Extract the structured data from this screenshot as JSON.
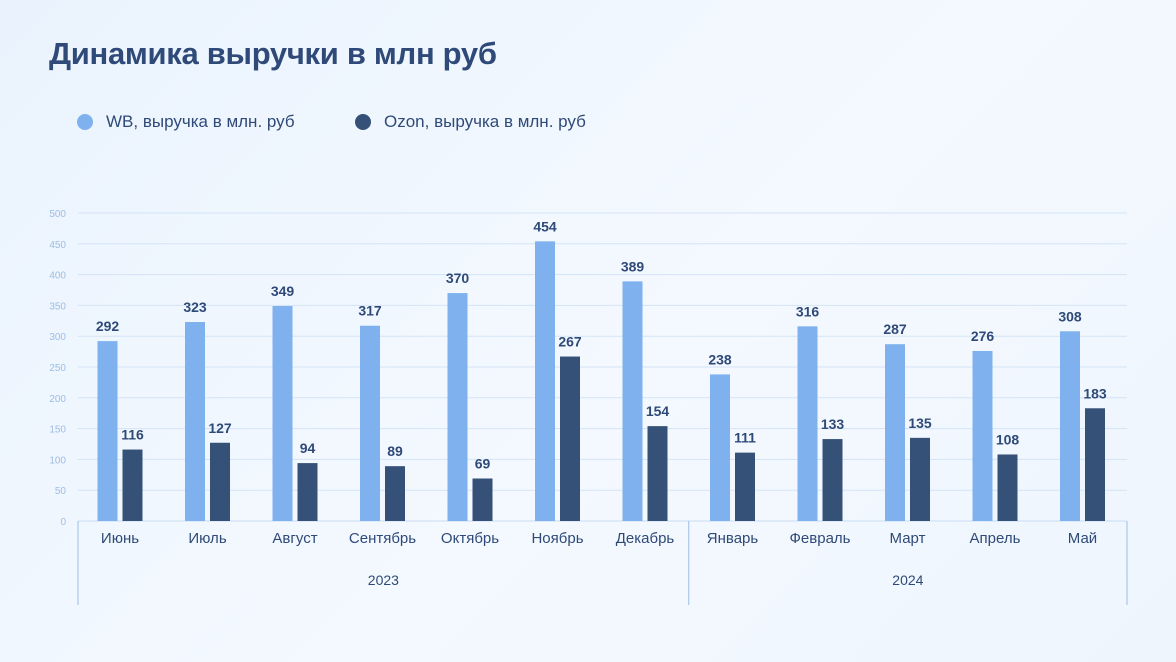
{
  "chart_data": {
    "type": "bar",
    "title": "Динамика выручки в млн руб",
    "categories": [
      "Июнь",
      "Июль",
      "Август",
      "Сентябрь",
      "Октябрь",
      "Ноябрь",
      "Декабрь",
      "Январь",
      "Февраль",
      "Март",
      "Апрель",
      "Май"
    ],
    "groups": [
      {
        "label": "2023",
        "count": 7
      },
      {
        "label": "2024",
        "count": 5
      }
    ],
    "series": [
      {
        "name": "WB, выручка в млн. руб",
        "color": "#7fb1ee",
        "values": [
          292,
          323,
          349,
          317,
          370,
          454,
          389,
          238,
          316,
          287,
          276,
          308
        ]
      },
      {
        "name": "Ozon, выручка в млн. руб",
        "color": "#355178",
        "values": [
          116,
          127,
          94,
          89,
          69,
          267,
          154,
          111,
          133,
          135,
          108,
          183
        ]
      }
    ],
    "yticks": [
      0,
      50,
      100,
      150,
      200,
      250,
      300,
      350,
      400,
      450,
      500
    ],
    "ylim": [
      0,
      500
    ],
    "grid": true,
    "legend": "top-left",
    "xlabel": "",
    "ylabel": ""
  }
}
